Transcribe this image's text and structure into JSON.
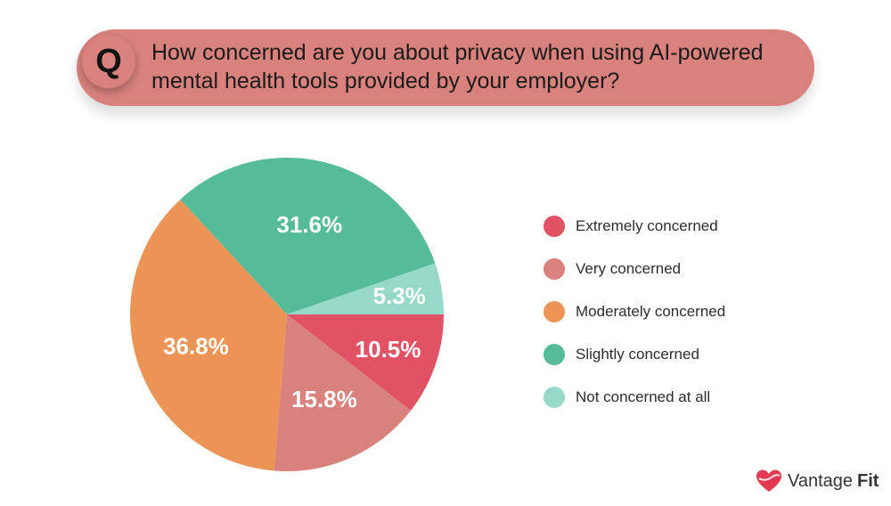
{
  "question": {
    "badge": "Q",
    "text": "How concerned are you about privacy when using AI-powered mental health tools provided by your employer?"
  },
  "chart_data": {
    "type": "pie",
    "title": "",
    "slices": [
      {
        "label": "Extremely concerned",
        "value": 10.5,
        "display": "10.5%",
        "color": "#e05264"
      },
      {
        "label": "Very concerned",
        "value": 15.8,
        "display": "15.8%",
        "color": "#d9827d"
      },
      {
        "label": "Moderately concerned",
        "value": 36.8,
        "display": "36.8%",
        "color": "#ec9456"
      },
      {
        "label": "Slightly concerned",
        "value": 31.6,
        "display": "31.6%",
        "color": "#55bb98"
      },
      {
        "label": "Not concerned at all",
        "value": 5.3,
        "display": "5.3%",
        "color": "#97d9c9"
      }
    ],
    "legend_position": "right"
  },
  "brand": {
    "name_part1": "Vantage",
    "name_part2": "Fit",
    "logo_icon": "heart-logo-icon",
    "logo_color": "#e23a52"
  }
}
